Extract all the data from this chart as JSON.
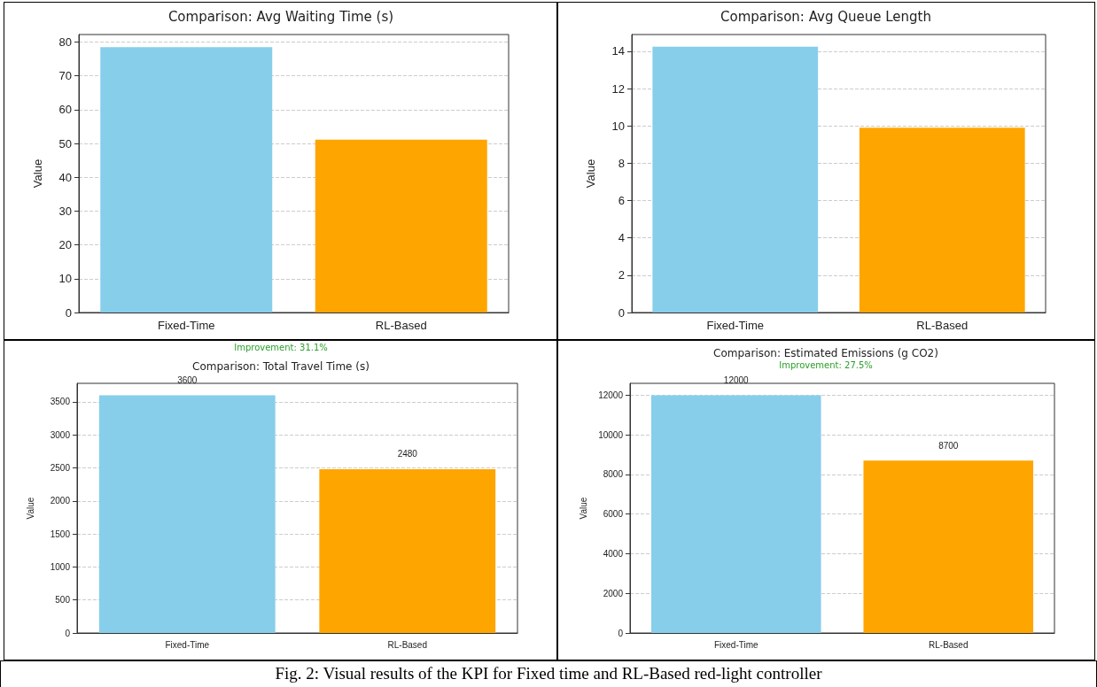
{
  "chart_data": [
    {
      "type": "bar",
      "title": "Comparison: Avg Waiting Time (s)",
      "ylabel": "Value",
      "categories": [
        "Fixed-Time",
        "RL-Based"
      ],
      "values": [
        78.5,
        51.1
      ],
      "colors": [
        "#87ceeb",
        "#ffa500"
      ],
      "ylim": [
        0,
        82.2
      ],
      "yticks": [
        0,
        10,
        20,
        30,
        40,
        50,
        60,
        70,
        80
      ],
      "grid": "y"
    },
    {
      "type": "bar",
      "title": "Comparison: Avg Queue Length",
      "ylabel": "Value",
      "categories": [
        "Fixed-Time",
        "RL-Based"
      ],
      "values": [
        14.25,
        9.91
      ],
      "colors": [
        "#87ceeb",
        "#ffa500"
      ],
      "ylim": [
        0,
        14.9
      ],
      "yticks": [
        0,
        2,
        4,
        6,
        8,
        10,
        12,
        14
      ],
      "grid": "y"
    },
    {
      "type": "bar",
      "title": "Comparison: Total Travel Time (s)",
      "ylabel": "Value",
      "categories": [
        "Fixed-Time",
        "RL-Based"
      ],
      "values": [
        3600,
        2480
      ],
      "colors": [
        "#87ceeb",
        "#ffa500"
      ],
      "ylim": [
        0,
        3780
      ],
      "yticks": [
        0,
        500,
        1000,
        1500,
        2000,
        2500,
        3000,
        3500
      ],
      "grid": "y",
      "data_labels": true,
      "annotations": [
        "Improvement: 31.1%"
      ]
    },
    {
      "type": "bar",
      "title": "Comparison: Estimated Emissions (g CO2)",
      "ylabel": "Value",
      "categories": [
        "Fixed-Time",
        "RL-Based"
      ],
      "values": [
        12000,
        8700
      ],
      "colors": [
        "#87ceeb",
        "#ffa500"
      ],
      "ylim": [
        0,
        12600
      ],
      "yticks": [
        0,
        2000,
        4000,
        6000,
        8000,
        10000,
        12000
      ],
      "grid": "y",
      "data_labels": true,
      "annotations": [
        "Improvement: 27.5%",
        "Fig. 2: Visual results of the KPI for Fixed time and RL-Based red-light controller"
      ]
    }
  ]
}
